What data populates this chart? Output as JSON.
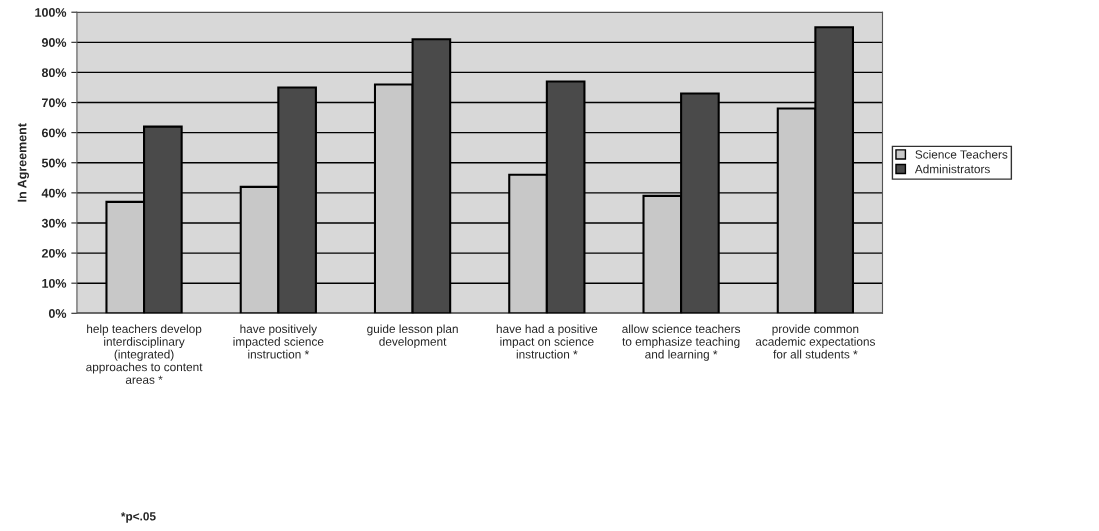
{
  "chart_data": {
    "type": "bar",
    "ylabel": "In Agreement",
    "categories": [
      "help teachers develop\ninterdisciplinary\n(integrated)\napproaches to content\nareas *",
      "have positively\nimpacted science\ninstruction *",
      "guide lesson plan\ndevelopment",
      "have had a positive\nimpact on science\ninstruction *",
      "allow science teachers\nto emphasize teaching\nand learning *",
      "provide common\nacademic expectations\nfor all students *"
    ],
    "series": [
      {
        "name": "Science Teachers",
        "color": "#c8c8c8",
        "values": [
          37,
          42,
          76,
          46,
          39,
          68
        ]
      },
      {
        "name": "Administrators",
        "color": "#4a4a4a",
        "values": [
          62,
          75,
          91,
          77,
          73,
          95
        ]
      }
    ],
    "ylim": [
      0,
      100
    ],
    "yticks": [
      {
        "value": 0,
        "label": "0%"
      },
      {
        "value": 10,
        "label": "10%"
      },
      {
        "value": 20,
        "label": "20%"
      },
      {
        "value": 30,
        "label": "30%"
      },
      {
        "value": 40,
        "label": "40%"
      },
      {
        "value": 50,
        "label": "50%"
      },
      {
        "value": 60,
        "label": "60%"
      },
      {
        "value": 70,
        "label": "70%"
      },
      {
        "value": 80,
        "label": "80%"
      },
      {
        "value": 90,
        "label": "90%"
      },
      {
        "value": 100,
        "label": "100%"
      }
    ],
    "grid": "y",
    "legend": "right",
    "annotations": [
      "*p<.05"
    ]
  }
}
